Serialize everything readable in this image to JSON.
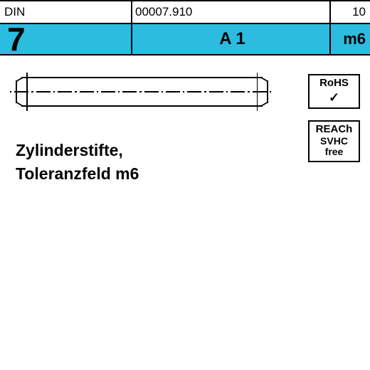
{
  "header": {
    "standard_label": "DIN",
    "standard_number": "7",
    "part_number": "00007.910",
    "page": "10",
    "material": "A 1",
    "tolerance": "m6"
  },
  "title": {
    "line1": "Zylinderstifte,",
    "line2": "Toleranzfeld m6"
  },
  "badges": {
    "rohs": {
      "label": "RoHS",
      "check": "✓"
    },
    "reach": {
      "t1": "REACh",
      "t2": "SVHC",
      "t3": "free"
    }
  },
  "colors": {
    "cyan": "#2bbce0",
    "black": "#000000",
    "white": "#ffffff"
  }
}
